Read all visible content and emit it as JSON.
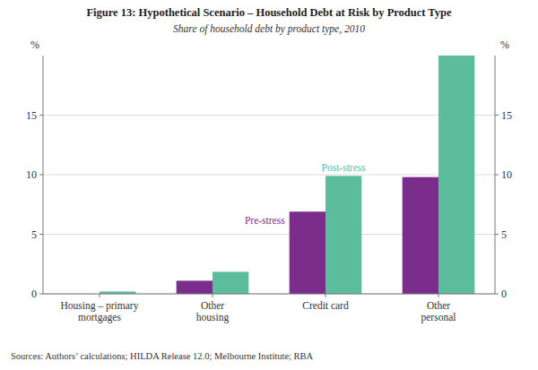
{
  "chart_data": {
    "type": "bar",
    "title": "Figure 13: Hypothetical Scenario – Household Debt at Risk by Product Type",
    "subtitle": "Share of household debt by product type, 2010",
    "sources": "Sources:   Authors’ calculations; HILDA Release 12.0; Melbourne Institute; RBA",
    "categories": [
      "Housing – primary\nmortgages",
      "Other\nhousing",
      "Credit card",
      "Other\npersonal"
    ],
    "series": [
      {
        "name": "Pre-stress",
        "color": "#7B2D8B",
        "values": [
          0.0,
          1.1,
          6.9,
          9.8
        ]
      },
      {
        "name": "Post-stress",
        "color": "#5BBD9B",
        "values": [
          0.2,
          1.85,
          9.9,
          20.0
        ]
      }
    ],
    "ylabel": "%",
    "y2label": "%",
    "ylim": [
      0,
      20
    ],
    "yticks": [
      0,
      5,
      10,
      15
    ],
    "y2lim": [
      0,
      20
    ],
    "y2ticks": [
      0,
      5,
      10,
      15
    ],
    "grid": true
  }
}
